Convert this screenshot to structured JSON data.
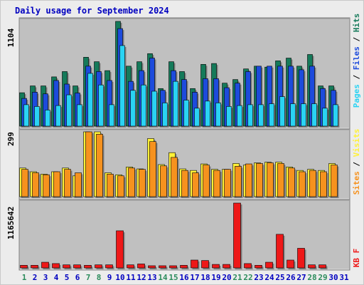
{
  "title": "Daily usage for September 2024",
  "colors": {
    "hits": "#157a5a",
    "files": "#1d4bdc",
    "pages": "#2ad3f3",
    "visits": "#fff238",
    "sites": "#f6921e",
    "kbytes": "#ee1818",
    "title": "#0000c0",
    "weekend_day": "#2c8c5c",
    "weekday": "#0000c0"
  },
  "chart_data": [
    {
      "type": "bar",
      "panel": "hits-files-pages",
      "y_max_label": "1104",
      "ylim": [
        0,
        1104
      ],
      "legend": [
        "Pages",
        "Files",
        "Hits"
      ],
      "categories": [
        "1",
        "2",
        "3",
        "4",
        "5",
        "6",
        "7",
        "8",
        "9",
        "10",
        "11",
        "12",
        "13",
        "14",
        "15",
        "16",
        "17",
        "18",
        "19",
        "20",
        "21",
        "22",
        "23",
        "24",
        "25",
        "26",
        "27",
        "28",
        "29",
        "30",
        "31"
      ],
      "weekend_days": [
        1,
        7,
        8,
        14,
        15,
        21,
        22,
        28,
        29
      ],
      "series": [
        {
          "name": "Hits",
          "values": [
            352,
            424,
            424,
            519,
            575,
            424,
            726,
            679,
            585,
            1104,
            632,
            679,
            764,
            396,
            679,
            575,
            396,
            651,
            660,
            453,
            491,
            603,
            632,
            622,
            688,
            717,
            632,
            755,
            424,
            424,
            0
          ]
        },
        {
          "name": "Files",
          "values": [
            292,
            358,
            340,
            481,
            443,
            349,
            632,
            575,
            481,
            1028,
            472,
            585,
            717,
            377,
            585,
            491,
            358,
            500,
            500,
            405,
            453,
            575,
            632,
            632,
            632,
            632,
            594,
            632,
            396,
            377,
            0
          ]
        },
        {
          "name": "Pages",
          "values": [
            226,
            207,
            170,
            217,
            330,
            226,
            556,
            434,
            226,
            849,
            377,
            434,
            368,
            245,
            472,
            274,
            189,
            264,
            245,
            207,
            217,
            226,
            226,
            236,
            311,
            236,
            236,
            236,
            189,
            226,
            0
          ]
        }
      ]
    },
    {
      "type": "bar",
      "panel": "visits-sites",
      "y_max_label": "299",
      "ylim": [
        0,
        299
      ],
      "legend": [
        "Sites",
        "Visits"
      ],
      "categories": [
        "1",
        "2",
        "3",
        "4",
        "5",
        "6",
        "7",
        "8",
        "9",
        "10",
        "11",
        "12",
        "13",
        "14",
        "15",
        "16",
        "17",
        "18",
        "19",
        "20",
        "21",
        "22",
        "23",
        "24",
        "25",
        "26",
        "27",
        "28",
        "29",
        "30",
        "31"
      ],
      "series": [
        {
          "name": "Visits",
          "values": [
            132,
            115,
            104,
            115,
            132,
            96,
            299,
            299,
            110,
            101,
            137,
            128,
            268,
            148,
            203,
            128,
            121,
            151,
            126,
            126,
            153,
            146,
            156,
            159,
            159,
            137,
            121,
            126,
            121,
            153,
            0
          ]
        },
        {
          "name": "Sites",
          "values": [
            126,
            110,
            101,
            115,
            126,
            110,
            299,
            288,
            104,
            96,
            132,
            126,
            254,
            142,
            181,
            121,
            110,
            146,
            121,
            126,
            140,
            151,
            153,
            156,
            153,
            132,
            115,
            121,
            115,
            146,
            0
          ]
        }
      ]
    },
    {
      "type": "bar",
      "panel": "kbytes",
      "y_max_label": "1165642",
      "ylim": [
        0,
        1165642
      ],
      "legend": [
        "KB F"
      ],
      "categories": [
        "1",
        "2",
        "3",
        "4",
        "5",
        "6",
        "7",
        "8",
        "9",
        "10",
        "11",
        "12",
        "13",
        "14",
        "15",
        "16",
        "17",
        "18",
        "19",
        "20",
        "21",
        "22",
        "23",
        "24",
        "25",
        "26",
        "27",
        "28",
        "29",
        "30",
        "31"
      ],
      "series": [
        {
          "name": "KB F",
          "values": [
            47000,
            47000,
            102000,
            78000,
            55000,
            55000,
            47000,
            55000,
            55000,
            667000,
            55000,
            71000,
            39000,
            39000,
            39000,
            47000,
            141000,
            133000,
            63000,
            63000,
            1165642,
            78000,
            47000,
            102000,
            604000,
            141000,
            353000,
            55000,
            55000,
            0,
            0
          ]
        }
      ]
    }
  ]
}
